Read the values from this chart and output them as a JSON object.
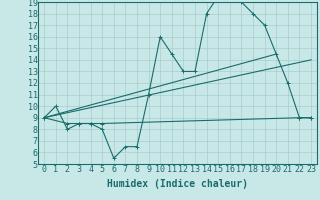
{
  "xlabel": "Humidex (Indice chaleur)",
  "bg_color": "#c8e8e8",
  "line_color": "#1a6b6b",
  "grid_color": "#aacccc",
  "xlim": [
    -0.5,
    23.5
  ],
  "ylim": [
    5,
    19
  ],
  "xticks": [
    0,
    1,
    2,
    3,
    4,
    5,
    6,
    7,
    8,
    9,
    10,
    11,
    12,
    13,
    14,
    15,
    16,
    17,
    18,
    19,
    20,
    21,
    22,
    23
  ],
  "yticks": [
    5,
    6,
    7,
    8,
    9,
    10,
    11,
    12,
    13,
    14,
    15,
    16,
    17,
    18,
    19
  ],
  "line1_x": [
    0,
    1,
    2,
    3,
    4,
    5,
    6,
    7,
    8,
    9,
    10,
    11,
    12,
    13,
    14,
    15,
    16,
    17,
    18,
    19,
    20,
    21,
    22,
    23
  ],
  "line1_y": [
    9,
    10,
    8,
    8.5,
    8.5,
    8,
    5.5,
    6.5,
    6.5,
    11,
    16,
    14.5,
    13,
    13,
    18,
    19.5,
    19.5,
    19,
    18,
    17,
    14.5,
    12,
    9,
    9
  ],
  "line2_x": [
    0,
    2,
    3,
    4,
    5,
    22,
    23
  ],
  "line2_y": [
    9,
    8.5,
    8.5,
    8.5,
    8.5,
    9,
    9
  ],
  "line3_x": [
    0,
    23
  ],
  "line3_y": [
    9,
    14
  ],
  "line4_x": [
    0,
    20
  ],
  "line4_y": [
    9,
    14.5
  ],
  "font_size": 7,
  "tick_font_size": 6
}
